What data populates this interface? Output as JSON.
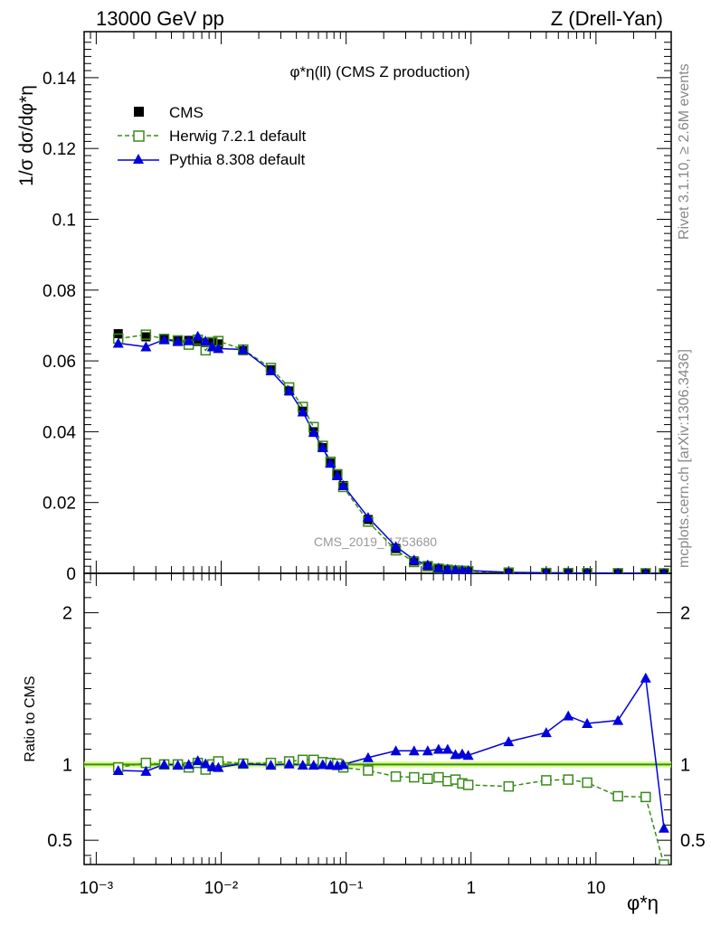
{
  "header": {
    "left": "13000 GeV pp",
    "right": "Z (Drell-Yan)"
  },
  "side": {
    "rivet": "Rivet 3.1.10, ≥ 2.6M events",
    "mcplots": "mcplots.cern.ch [arXiv:1306.3436]"
  },
  "watermark": "CMS_2019_I1753680",
  "colors": {
    "cms": "#000000",
    "herwig": "#3a8a1a",
    "pythia": "#0000dd",
    "band": "#ccff66"
  },
  "chart_data": [
    {
      "type": "scatter",
      "panel": "main",
      "title": "φ*η(ll) (CMS Z production)",
      "ylabel": "1/σ dσ/dφ*η",
      "xscale": "log",
      "xlim": [
        0.0008,
        40
      ],
      "ylim": [
        0,
        0.153
      ],
      "yticks": [
        "0",
        "0.02",
        "0.04",
        "0.06",
        "0.08",
        "0.1",
        "0.12",
        "0.14"
      ],
      "legend_position": "top-left",
      "x": [
        0.0015,
        0.0025,
        0.0035,
        0.0045,
        0.0055,
        0.0065,
        0.0075,
        0.0085,
        0.0095,
        0.015,
        0.025,
        0.035,
        0.045,
        0.055,
        0.065,
        0.075,
        0.085,
        0.095,
        0.15,
        0.25,
        0.35,
        0.45,
        0.55,
        0.65,
        0.75,
        0.85,
        0.95,
        2,
        4,
        6,
        8.5,
        15,
        25,
        35
      ],
      "series": [
        {
          "name": "CMS",
          "marker": "filled-square",
          "values": [
            0.0677,
            0.0668,
            0.0661,
            0.0659,
            0.0658,
            0.0655,
            0.0652,
            0.0651,
            0.0648,
            0.0629,
            0.0575,
            0.0515,
            0.0458,
            0.04,
            0.0355,
            0.0312,
            0.0278,
            0.0248,
            0.0152,
            0.007,
            0.0035,
            0.0022,
            0.0014,
            0.0011,
            0.0009,
            0.0008,
            0.0007,
            0.00025,
            0.00012,
            9e-05,
            7e-05,
            4e-05,
            2e-05,
            1e-05
          ]
        },
        {
          "name": "Herwig 7.2.1 default",
          "marker": "open-square",
          "line": "dashed",
          "values": [
            0.0663,
            0.0674,
            0.0662,
            0.0658,
            0.0646,
            0.066,
            0.063,
            0.0653,
            0.0656,
            0.0632,
            0.058,
            0.0525,
            0.047,
            0.0413,
            0.036,
            0.0315,
            0.028,
            0.0244,
            0.0146,
            0.0065,
            0.0032,
            0.002,
            0.0013,
            0.001,
            0.0008,
            0.0007,
            0.0006,
            0.00021,
            0.0001,
            8e-05,
            6e-05,
            3e-05,
            1.6e-05,
            3e-06
          ]
        },
        {
          "name": "Pythia 8.308 default",
          "marker": "filled-triangle",
          "line": "solid",
          "values": [
            0.065,
            0.064,
            0.066,
            0.0655,
            0.0657,
            0.067,
            0.0656,
            0.064,
            0.0635,
            0.0632,
            0.0572,
            0.0516,
            0.0456,
            0.0398,
            0.0355,
            0.0311,
            0.0276,
            0.0248,
            0.0158,
            0.0076,
            0.0038,
            0.0024,
            0.0015,
            0.0012,
            0.001,
            0.0009,
            0.0008,
            0.0003,
            0.00015,
            0.00012,
            9e-05,
            5e-05,
            3e-05,
            6e-06
          ]
        }
      ]
    },
    {
      "type": "scatter",
      "panel": "ratio",
      "ylabel": "Ratio to CMS",
      "xlabel": "φ*η",
      "xscale": "log",
      "xlim": [
        0.0008,
        40
      ],
      "ylim": [
        0.34,
        2.26
      ],
      "yticks": [
        "0.5",
        "1",
        "2"
      ],
      "xticks": [
        "10⁻³",
        "10⁻²",
        "10⁻¹",
        "1",
        "10"
      ],
      "x": [
        0.0015,
        0.0025,
        0.0035,
        0.0045,
        0.0055,
        0.0065,
        0.0075,
        0.0085,
        0.0095,
        0.015,
        0.025,
        0.035,
        0.045,
        0.055,
        0.065,
        0.075,
        0.085,
        0.095,
        0.15,
        0.25,
        0.35,
        0.45,
        0.55,
        0.65,
        0.75,
        0.85,
        0.95,
        2,
        4,
        6,
        8.5,
        15,
        25,
        35
      ],
      "series": [
        {
          "name": "Herwig 7.2.1 default",
          "values": [
            0.98,
            1.01,
            1.0,
            1.0,
            0.98,
            1.01,
            0.966,
            1.0,
            1.02,
            1.005,
            1.01,
            1.02,
            1.03,
            1.03,
            1.015,
            1.01,
            1.005,
            0.98,
            0.96,
            0.92,
            0.915,
            0.905,
            0.915,
            0.89,
            0.9,
            0.875,
            0.865,
            0.855,
            0.895,
            0.9,
            0.88,
            0.79,
            0.785,
            0.34
          ]
        },
        {
          "name": "Pythia 8.308 default",
          "values": [
            0.96,
            0.955,
            1.0,
            0.995,
            1.0,
            1.025,
            1.005,
            0.985,
            0.98,
            1.005,
            0.995,
            1.003,
            0.996,
            0.995,
            1.0,
            0.997,
            0.993,
            1.0,
            1.045,
            1.09,
            1.09,
            1.09,
            1.1,
            1.1,
            1.065,
            1.07,
            1.06,
            1.15,
            1.21,
            1.32,
            1.27,
            1.29,
            1.57,
            0.58
          ]
        }
      ]
    }
  ]
}
